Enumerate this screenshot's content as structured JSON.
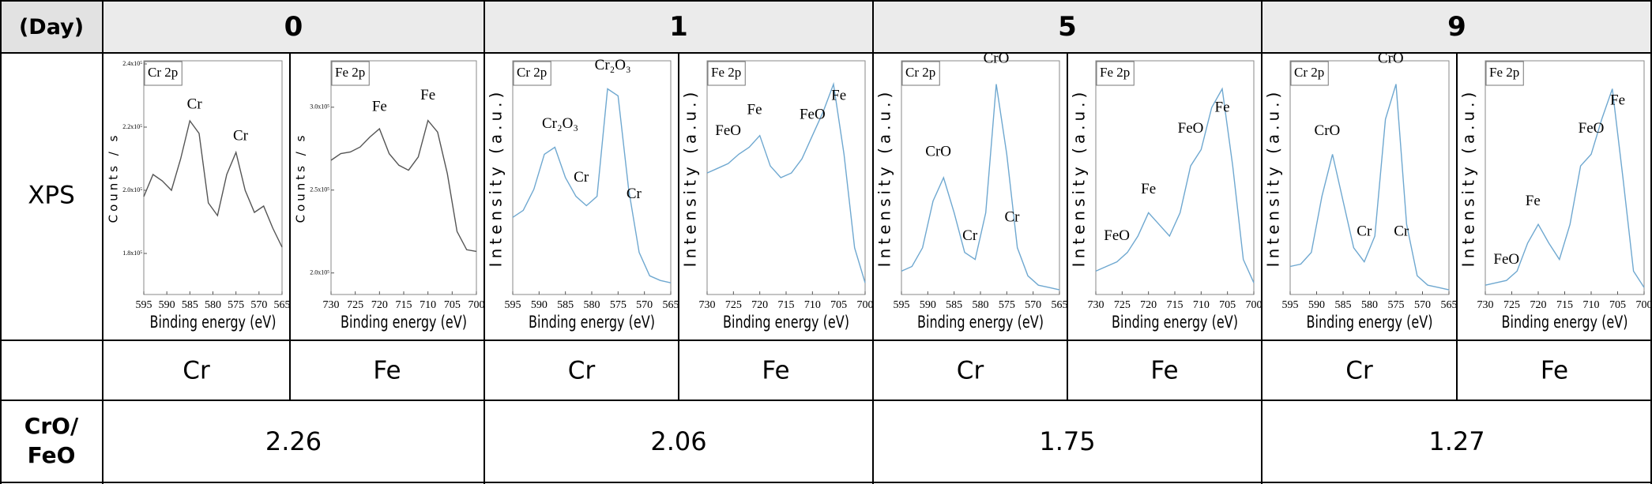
{
  "table": {
    "header": {
      "label": "(Day)",
      "days": [
        "0",
        "1",
        "5",
        "9"
      ]
    },
    "xps_label": "XPS",
    "elements": [
      "Cr",
      "Fe",
      "Cr",
      "Fe",
      "Cr",
      "Fe",
      "Cr",
      "Fe"
    ],
    "ratio_label": [
      "CrO/",
      "FeO"
    ],
    "ratios": [
      "2.26",
      "2.06",
      "1.75",
      "1.27"
    ]
  },
  "chart_data": [
    {
      "type": "line",
      "label": "Cr 2p",
      "xlabel": "Binding energy (eV)",
      "ylabel": "Counts / s",
      "color": "#555555",
      "xlim": [
        595,
        565
      ],
      "xticks": [
        595,
        590,
        585,
        580,
        575,
        570,
        565
      ],
      "ylim": [
        167000,
        241000
      ],
      "yticks": [
        {
          "value": 180000,
          "label": "1.8x10⁵"
        },
        {
          "value": 200000,
          "label": "2.0x10⁵"
        },
        {
          "value": 220000,
          "label": "2.2x10⁵"
        },
        {
          "value": 240000,
          "label": "2.4x10⁵"
        }
      ],
      "x": [
        595,
        593,
        591,
        589,
        587,
        585,
        583,
        581,
        579,
        577,
        575,
        573,
        571,
        569,
        567,
        565
      ],
      "values": [
        198000,
        205000,
        203000,
        200000,
        210000,
        222000,
        218000,
        196000,
        192000,
        205000,
        212000,
        200000,
        193000,
        195000,
        188000,
        182000
      ],
      "annotations": [
        {
          "text": "Cr",
          "x": 584,
          "y": 225000
        },
        {
          "text": "Cr",
          "x": 574,
          "y": 215000
        }
      ]
    },
    {
      "type": "line",
      "label": "Fe 2p",
      "xlabel": "Binding energy (eV)",
      "ylabel": "Counts / s",
      "color": "#555555",
      "xlim": [
        730,
        700
      ],
      "xticks": [
        730,
        725,
        720,
        715,
        710,
        705,
        700
      ],
      "ylim": [
        187000,
        328000
      ],
      "yticks": [
        {
          "value": 200000,
          "label": "2.0x10⁵"
        },
        {
          "value": 250000,
          "label": "2.5x10⁵"
        },
        {
          "value": 300000,
          "label": "3.0x10⁵"
        }
      ],
      "x": [
        730,
        728,
        726,
        724,
        722,
        720,
        718,
        716,
        714,
        712,
        710,
        708,
        706,
        704,
        702,
        700
      ],
      "values": [
        268000,
        272000,
        273000,
        276000,
        282000,
        287000,
        272000,
        265000,
        262000,
        270000,
        292000,
        285000,
        260000,
        225000,
        214000,
        213000
      ],
      "annotations": [
        {
          "text": "Fe",
          "x": 720,
          "y": 296000
        },
        {
          "text": "Fe",
          "x": 710,
          "y": 303000
        }
      ]
    },
    {
      "type": "line",
      "label": "Cr 2p",
      "xlabel": "Binding energy (eV)",
      "ylabel": "Intensity (a.u.)",
      "color": "#6fa8d0",
      "xlim": [
        595,
        565
      ],
      "xticks": [
        595,
        590,
        585,
        580,
        575,
        570,
        565
      ],
      "ylim": [
        0,
        1
      ],
      "x": [
        595,
        593,
        591,
        589,
        587,
        585,
        583,
        581,
        579,
        577,
        575,
        573,
        571,
        569,
        567,
        565
      ],
      "values": [
        0.33,
        0.36,
        0.45,
        0.6,
        0.63,
        0.5,
        0.42,
        0.38,
        0.42,
        0.88,
        0.85,
        0.45,
        0.18,
        0.08,
        0.06,
        0.05
      ],
      "annotations": [
        {
          "text": "Cr₂O₃",
          "x": 586,
          "y": 0.7
        },
        {
          "text": "Cr₂O₃",
          "x": 576,
          "y": 0.95
        },
        {
          "text": "Cr",
          "x": 582,
          "y": 0.47
        },
        {
          "text": "Cr",
          "x": 572,
          "y": 0.4
        }
      ]
    },
    {
      "type": "line",
      "label": "Fe 2p",
      "xlabel": "Binding energy (eV)",
      "ylabel": "Intensity (a.u.)",
      "color": "#6fa8d0",
      "xlim": [
        730,
        700
      ],
      "xticks": [
        730,
        725,
        720,
        715,
        710,
        705,
        700
      ],
      "ylim": [
        0,
        1
      ],
      "x": [
        730,
        728,
        726,
        724,
        722,
        720,
        718,
        716,
        714,
        712,
        710,
        708,
        706,
        704,
        702,
        700
      ],
      "values": [
        0.52,
        0.54,
        0.56,
        0.6,
        0.63,
        0.68,
        0.55,
        0.5,
        0.52,
        0.58,
        0.68,
        0.78,
        0.9,
        0.6,
        0.2,
        0.05
      ],
      "annotations": [
        {
          "text": "FeO",
          "x": 726,
          "y": 0.67
        },
        {
          "text": "Fe",
          "x": 721,
          "y": 0.76
        },
        {
          "text": "FeO",
          "x": 710,
          "y": 0.74
        },
        {
          "text": "Fe",
          "x": 705,
          "y": 0.82
        }
      ]
    },
    {
      "type": "line",
      "label": "Cr 2p",
      "xlabel": "Binding energy (eV)",
      "ylabel": "Intensity (a.u.)",
      "color": "#6fa8d0",
      "xlim": [
        595,
        565
      ],
      "xticks": [
        595,
        590,
        585,
        580,
        575,
        570,
        565
      ],
      "ylim": [
        0,
        1
      ],
      "x": [
        595,
        593,
        591,
        589,
        587,
        585,
        583,
        581,
        579,
        577,
        575,
        573,
        571,
        569,
        567,
        565
      ],
      "values": [
        0.1,
        0.12,
        0.2,
        0.4,
        0.5,
        0.35,
        0.18,
        0.15,
        0.35,
        0.9,
        0.6,
        0.2,
        0.08,
        0.04,
        0.03,
        0.02
      ],
      "annotations": [
        {
          "text": "CrO",
          "x": 588,
          "y": 0.58
        },
        {
          "text": "Cr",
          "x": 582,
          "y": 0.22
        },
        {
          "text": "CrO",
          "x": 577,
          "y": 0.98
        },
        {
          "text": "Cr",
          "x": 574,
          "y": 0.3
        }
      ]
    },
    {
      "type": "line",
      "label": "Fe 2p",
      "xlabel": "Binding energy (eV)",
      "ylabel": "Intensity (a.u.)",
      "color": "#6fa8d0",
      "xlim": [
        730,
        700
      ],
      "xticks": [
        730,
        725,
        720,
        715,
        710,
        705,
        700
      ],
      "ylim": [
        0,
        1
      ],
      "x": [
        730,
        728,
        726,
        724,
        722,
        720,
        718,
        716,
        714,
        712,
        710,
        708,
        706,
        704,
        702,
        700
      ],
      "values": [
        0.1,
        0.12,
        0.14,
        0.18,
        0.25,
        0.35,
        0.3,
        0.25,
        0.35,
        0.55,
        0.62,
        0.8,
        0.88,
        0.55,
        0.15,
        0.05
      ],
      "annotations": [
        {
          "text": "FeO",
          "x": 726,
          "y": 0.22
        },
        {
          "text": "Fe",
          "x": 720,
          "y": 0.42
        },
        {
          "text": "FeO",
          "x": 712,
          "y": 0.68
        },
        {
          "text": "Fe",
          "x": 706,
          "y": 0.77
        }
      ]
    },
    {
      "type": "line",
      "label": "Cr 2p",
      "xlabel": "Binding energy (eV)",
      "ylabel": "Intensity (a.u.)",
      "color": "#6fa8d0",
      "xlim": [
        595,
        565
      ],
      "xticks": [
        595,
        590,
        585,
        580,
        575,
        570,
        565
      ],
      "ylim": [
        0,
        1
      ],
      "x": [
        595,
        593,
        591,
        589,
        587,
        585,
        583,
        581,
        579,
        577,
        575,
        573,
        571,
        569,
        567,
        565
      ],
      "values": [
        0.12,
        0.13,
        0.18,
        0.42,
        0.6,
        0.4,
        0.2,
        0.14,
        0.25,
        0.75,
        0.9,
        0.3,
        0.08,
        0.04,
        0.03,
        0.02
      ],
      "annotations": [
        {
          "text": "CrO",
          "x": 588,
          "y": 0.67
        },
        {
          "text": "Cr",
          "x": 581,
          "y": 0.24
        },
        {
          "text": "CrO",
          "x": 576,
          "y": 0.98
        },
        {
          "text": "Cr",
          "x": 574,
          "y": 0.24
        }
      ]
    },
    {
      "type": "line",
      "label": "Fe 2p",
      "xlabel": "Binding energy (eV)",
      "ylabel": "Intensity (a.u.)",
      "color": "#6fa8d0",
      "xlim": [
        730,
        700
      ],
      "xticks": [
        730,
        725,
        720,
        715,
        710,
        705,
        700
      ],
      "ylim": [
        0,
        1
      ],
      "x": [
        730,
        728,
        726,
        724,
        722,
        720,
        718,
        716,
        714,
        712,
        710,
        708,
        706,
        704,
        702,
        700
      ],
      "values": [
        0.04,
        0.05,
        0.06,
        0.1,
        0.22,
        0.3,
        0.22,
        0.15,
        0.3,
        0.55,
        0.6,
        0.75,
        0.88,
        0.5,
        0.1,
        0.03
      ],
      "annotations": [
        {
          "text": "FeO",
          "x": 726,
          "y": 0.12
        },
        {
          "text": "Fe",
          "x": 721,
          "y": 0.37
        },
        {
          "text": "FeO",
          "x": 710,
          "y": 0.68
        },
        {
          "text": "Fe",
          "x": 705,
          "y": 0.8
        }
      ]
    }
  ]
}
